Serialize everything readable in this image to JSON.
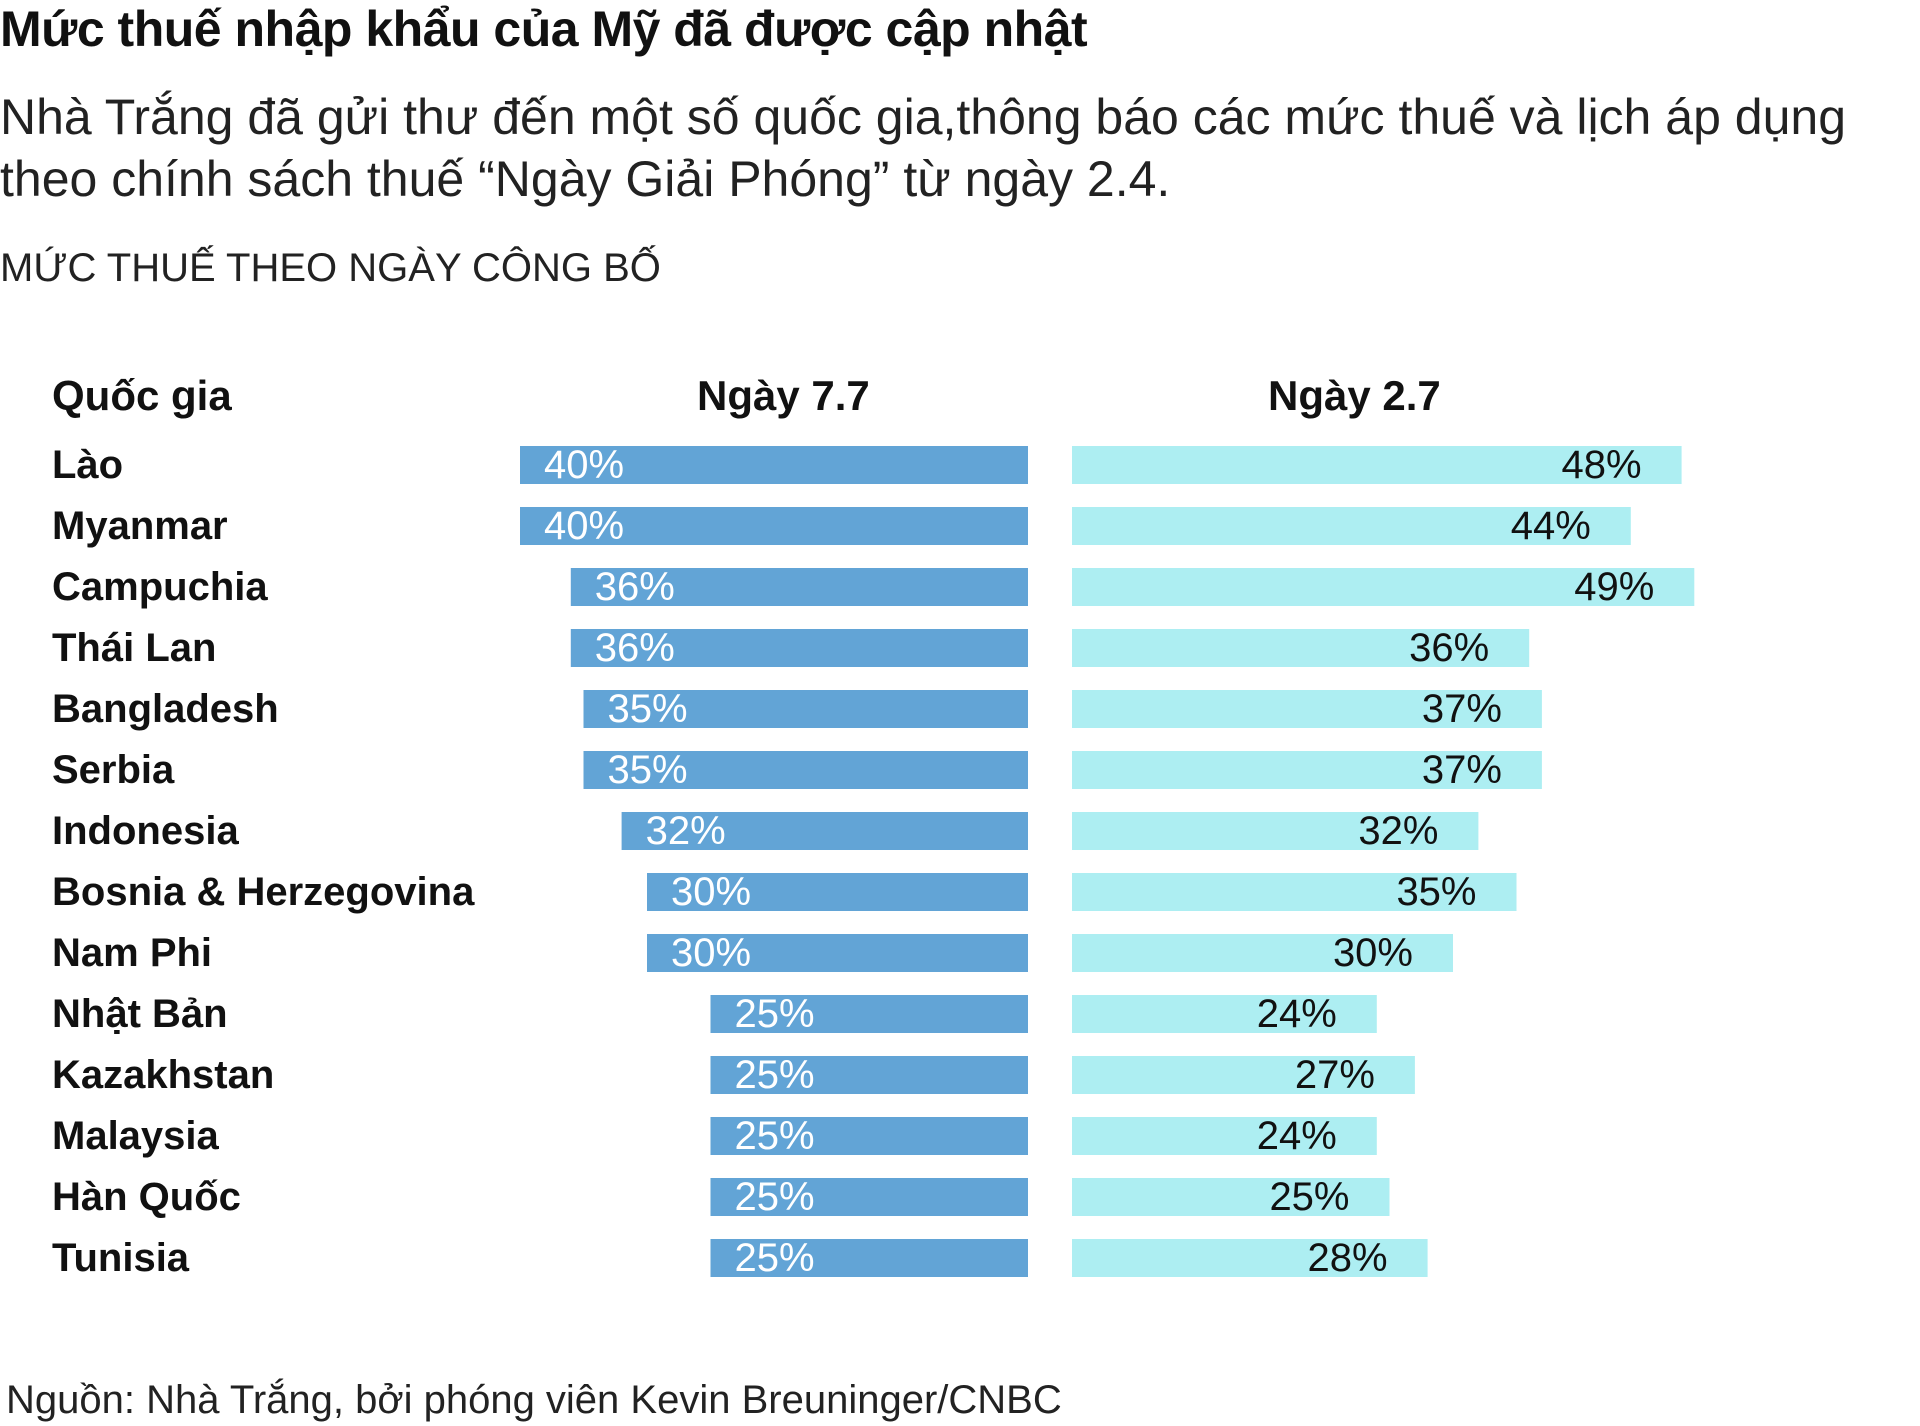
{
  "title": "Mức thuế nhập khẩu của Mỹ đã được cập nhật",
  "subtitle": "Nhà Trắng đã gửi thư đến một số quốc gia,thông báo các mức thuế và lịch áp dụng theo chính sách thuế “Ngày Giải Phóng” từ ngày 2.4.",
  "section_label": "MỨC THUẾ THEO NGÀY CÔNG BỐ",
  "source": "Nguồn: Nhà Trắng, bởi phóng viên Kevin Breuninger/CNBC",
  "colors": {
    "left_bar": "#62a4d6",
    "right_bar": "#adeef2",
    "left_label": "#ffffff",
    "right_label": "#111111"
  },
  "chart_data": {
    "type": "bar",
    "layout": "butterfly",
    "category_header": "Quốc gia",
    "categories": [
      "Lào",
      "Myanmar",
      "Campuchia",
      "Thái Lan",
      "Bangladesh",
      "Serbia",
      "Indonesia",
      "Bosnia & Herzegovina",
      "Nam Phi",
      "Nhật Bản",
      "Kazakhstan",
      "Malaysia",
      "Hàn Quốc",
      "Tunisia"
    ],
    "series": [
      {
        "name": "Ngày 7.7",
        "values": [
          40,
          40,
          36,
          36,
          35,
          35,
          32,
          30,
          30,
          25,
          25,
          25,
          25,
          25
        ],
        "labels": [
          "40%",
          "40%",
          "36%",
          "36%",
          "35%",
          "35%",
          "32%",
          "30%",
          "30%",
          "25%",
          "25%",
          "25%",
          "25%",
          "25%"
        ],
        "direction": "left"
      },
      {
        "name": "Ngày 2.7",
        "values": [
          48,
          44,
          49,
          36,
          37,
          37,
          32,
          35,
          30,
          24,
          27,
          24,
          25,
          28
        ],
        "labels": [
          "48%",
          "44%",
          "49%",
          "36%",
          "37%",
          "37%",
          "32%",
          "35%",
          "30%",
          "24%",
          "27%",
          "24%",
          "25%",
          "28%"
        ],
        "direction": "right"
      }
    ],
    "unit": "%",
    "grid": false,
    "legend": "none"
  }
}
